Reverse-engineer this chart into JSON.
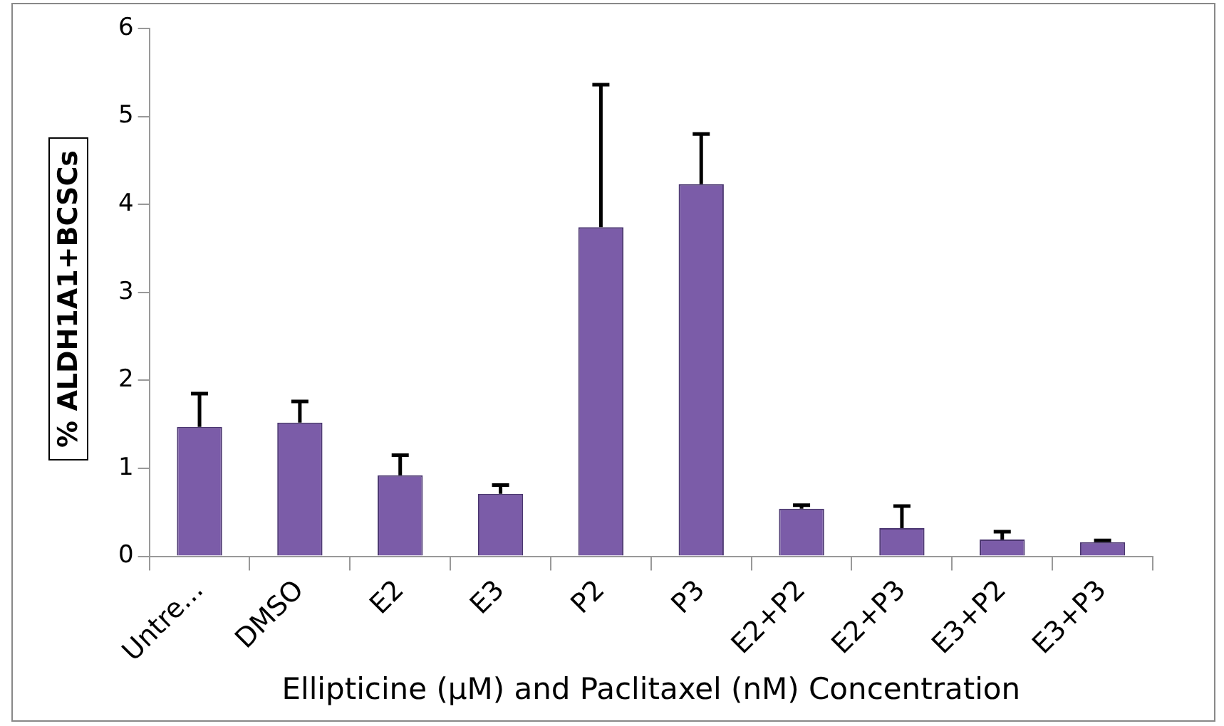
{
  "chart_data": {
    "type": "bar",
    "xlabel": "Ellipticine (µM) and Paclitaxel (nM) Concentration",
    "ylabel": "% ALDH1A1+BCSCs",
    "categories": [
      "Untre...",
      "DMSO",
      "E2",
      "E3",
      "P2",
      "P3",
      "E2+P2",
      "E2+P3",
      "E3+P2",
      "E3+P3"
    ],
    "values": [
      1.47,
      1.52,
      0.92,
      0.71,
      3.74,
      4.23,
      0.54,
      0.32,
      0.19,
      0.16
    ],
    "errors": [
      [
        1.47,
        1.85
      ],
      [
        1.52,
        1.76
      ],
      [
        0.92,
        1.15
      ],
      [
        0.71,
        0.81
      ],
      [
        3.74,
        5.36
      ],
      [
        4.23,
        4.8
      ],
      [
        0.54,
        0.58
      ],
      [
        0.32,
        0.57
      ],
      [
        0.19,
        0.28
      ],
      [
        0.16,
        0.18
      ]
    ],
    "color": "#7b5ca8",
    "ylim": [
      0,
      6
    ],
    "yticks": [
      0,
      1,
      2,
      3,
      4,
      5,
      6
    ],
    "grid": false,
    "legend": false
  }
}
